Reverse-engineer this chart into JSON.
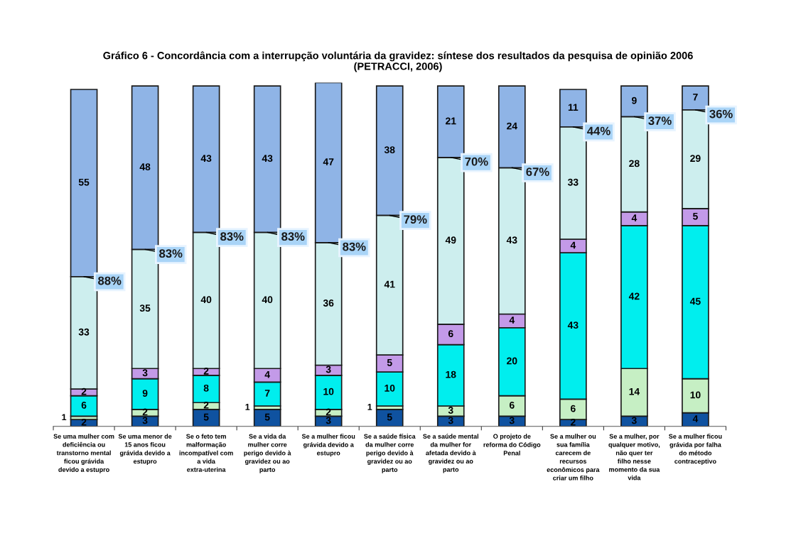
{
  "chart_data": {
    "type": "bar",
    "stacked": true,
    "title": "Gráfico 6 - Concordância com a interrupção voluntária da gravidez: síntese dos resultados da pesquisa de opinião 2006",
    "subtitle": "(PETRACCI, 2006)",
    "categories": [
      "Se uma mulher com deficiência ou transtorno mental ficou grávida devido a estupro",
      "Se uma menor de 15 anos ficou grávida devido a estupro",
      "Se o feto tem malformação incompatível com a vida extra-uterina",
      "Se a vida da mulher corre perigo devido à gravidez ou ao parto",
      "Se a mulher ficou grávida devido a estupro",
      "Se a saúde física da mulher corre perigo devido à gravidez ou ao parto",
      "Se a saúde mental da mulher for afetada devido à gravidez ou ao parto",
      "O projeto de reforma do Código Penal",
      "Se a mulher ou sua família carecem de recursos econômicos para criar um filho",
      "Se a mulher, por qualquer motivo, não quer ter filho nesse momento da sua vida",
      "Se a mulher ficou grávida por falha do método contraceptivo"
    ],
    "series": [
      {
        "color": "#0f52a0",
        "values": [
          2,
          3,
          5,
          5,
          3,
          5,
          3,
          3,
          2,
          3,
          4
        ]
      },
      {
        "color": "#c6efc4",
        "values": [
          1,
          2,
          2,
          1,
          2,
          1,
          3,
          6,
          6,
          14,
          10
        ]
      },
      {
        "color": "#00eeee",
        "values": [
          6,
          9,
          8,
          7,
          10,
          10,
          18,
          20,
          43,
          42,
          45
        ]
      },
      {
        "color": "#c39ae8",
        "values": [
          2,
          3,
          2,
          4,
          3,
          5,
          6,
          4,
          4,
          4,
          5
        ]
      },
      {
        "color": "#cdeeee",
        "values": [
          33,
          35,
          40,
          40,
          36,
          41,
          49,
          43,
          33,
          28,
          29
        ]
      },
      {
        "color": "#8fb4e6",
        "values": [
          55,
          48,
          43,
          43,
          47,
          38,
          21,
          24,
          11,
          9,
          7
        ]
      }
    ],
    "ylim": [
      0,
      101
    ],
    "tick_labels": "x",
    "data_labels": true,
    "grid": false,
    "annotations": [
      {
        "text": "88%",
        "x": "Se uma mulher com deficiência ou transtorno mental ficou grávida devido a estupro",
        "y": 44
      },
      {
        "text": "83%",
        "x": "Se uma menor de 15 anos ficou grávida devido a estupro",
        "y": 52
      },
      {
        "text": "83%",
        "x": "Se o feto tem malformação incompatível com a vida extra-uterina",
        "y": 57
      },
      {
        "text": "83%",
        "x": "Se a vida da mulher corre perigo devido à gravidez ou ao parto",
        "y": 57
      },
      {
        "text": "83%",
        "x": "Se a mulher ficou grávida devido a estupro",
        "y": 54
      },
      {
        "text": "79%",
        "x": "Se a saúde física da mulher corre perigo devido à gravidez ou ao parto",
        "y": 62
      },
      {
        "text": "70%",
        "x": "Se a saúde mental da mulher for afetada devido à gravidez ou ao parto",
        "y": 79
      },
      {
        "text": "67%",
        "x": "O projeto de reforma do Código Penal",
        "y": 76
      },
      {
        "text": "44%",
        "x": "Se a mulher ou sua família carecem de recursos econômicos para criar um filho",
        "y": 88
      },
      {
        "text": "37%",
        "x": "Se a mulher, por qualquer motivo, não quer ter filho nesse momento da sua vida",
        "y": 91
      },
      {
        "text": "36%",
        "x": "Se a mulher ficou grávida por falha do método contraceptivo",
        "y": 93
      }
    ]
  }
}
